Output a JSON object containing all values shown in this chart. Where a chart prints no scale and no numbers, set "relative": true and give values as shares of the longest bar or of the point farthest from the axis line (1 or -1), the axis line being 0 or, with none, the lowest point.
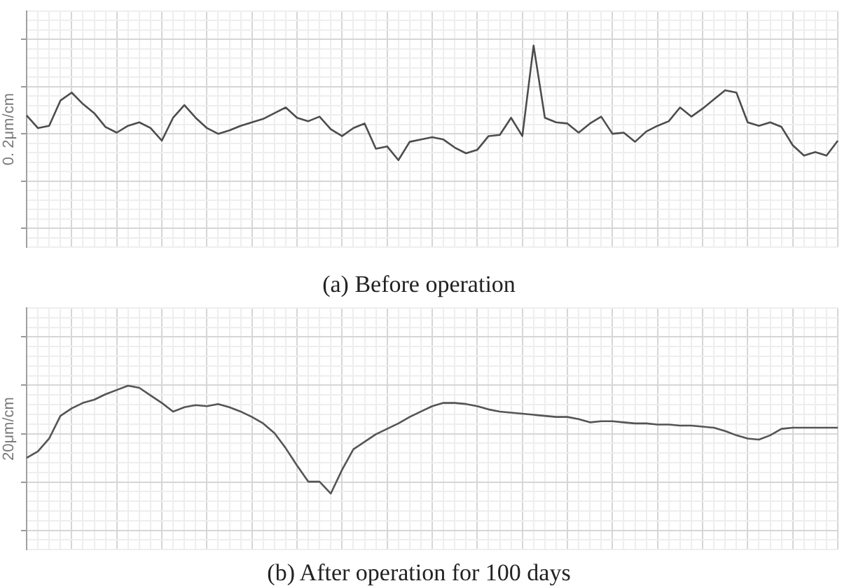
{
  "chart_data": [
    {
      "type": "line",
      "title": "(a) Before operation",
      "ylabel": "0. 2μm/cm",
      "relative": true,
      "grid": true,
      "color": "#4d4d4d",
      "categories": [
        null,
        null,
        null,
        null,
        null,
        null,
        null,
        null,
        null,
        null,
        null,
        null,
        null,
        null,
        null,
        null,
        null,
        null,
        null,
        null,
        null,
        null,
        null,
        null,
        null,
        null,
        null,
        null,
        null,
        null,
        null,
        null,
        null,
        null,
        null,
        null,
        null,
        null,
        null,
        null,
        null,
        null,
        null,
        null,
        null,
        null,
        null,
        null,
        null,
        null,
        null,
        null,
        null,
        null,
        null,
        null,
        null,
        null,
        null,
        null,
        null,
        null,
        null,
        null,
        null,
        null,
        null,
        null,
        null,
        null,
        null,
        null,
        null
      ],
      "values": [
        0.39,
        0.28,
        0.3,
        0.52,
        0.59,
        0.49,
        0.41,
        0.29,
        0.24,
        0.3,
        0.33,
        0.28,
        0.17,
        0.37,
        0.48,
        0.37,
        0.28,
        0.23,
        0.26,
        0.3,
        0.33,
        0.36,
        0.41,
        0.46,
        0.37,
        0.34,
        0.38,
        0.27,
        0.21,
        0.28,
        0.32,
        0.1,
        0.12,
        0,
        0.16,
        0.18,
        0.2,
        0.18,
        0.11,
        0.06,
        0.09,
        0.21,
        0.22,
        0.37,
        0.21,
        1,
        0.37,
        0.33,
        0.32,
        0.24,
        0.32,
        0.38,
        0.23,
        0.24,
        0.16,
        0.25,
        0.3,
        0.34,
        0.46,
        0.38,
        0.45,
        0.53,
        0.61,
        0.59,
        0.33,
        0.3,
        0.33,
        0.29,
        0.13,
        0.04,
        0.07,
        0.04,
        0.17
      ]
    },
    {
      "type": "line",
      "title": "(b) After operation for 100 days",
      "ylabel": "20μm/cm",
      "relative": true,
      "grid": true,
      "color": "#555555",
      "categories": [
        null,
        null,
        null,
        null,
        null,
        null,
        null,
        null,
        null,
        null,
        null,
        null,
        null,
        null,
        null,
        null,
        null,
        null,
        null,
        null,
        null,
        null,
        null,
        null,
        null,
        null,
        null,
        null,
        null,
        null,
        null,
        null,
        null,
        null,
        null,
        null,
        null,
        null,
        null,
        null,
        null,
        null,
        null,
        null,
        null,
        null,
        null,
        null,
        null,
        null,
        null,
        null,
        null,
        null,
        null,
        null,
        null,
        null,
        null,
        null,
        null,
        null,
        null,
        null,
        null,
        null,
        null,
        null,
        null,
        null,
        null,
        null,
        null
      ],
      "values": [
        0.33,
        0.39,
        0.51,
        0.72,
        0.79,
        0.84,
        0.87,
        0.92,
        0.96,
        1,
        0.98,
        0.91,
        0.84,
        0.76,
        0.8,
        0.82,
        0.81,
        0.83,
        0.8,
        0.76,
        0.71,
        0.65,
        0.56,
        0.42,
        0.26,
        0.11,
        0.11,
        0,
        0.22,
        0.41,
        0.48,
        0.55,
        0.6,
        0.65,
        0.71,
        0.76,
        0.81,
        0.84,
        0.84,
        0.83,
        0.81,
        0.78,
        0.76,
        0.75,
        0.74,
        0.73,
        0.72,
        0.71,
        0.71,
        0.69,
        0.66,
        0.67,
        0.67,
        0.66,
        0.65,
        0.65,
        0.64,
        0.64,
        0.63,
        0.63,
        0.62,
        0.61,
        0.58,
        0.54,
        0.51,
        0.5,
        0.54,
        0.6,
        0.61,
        0.61,
        0.61,
        0.61,
        0.61
      ]
    }
  ]
}
